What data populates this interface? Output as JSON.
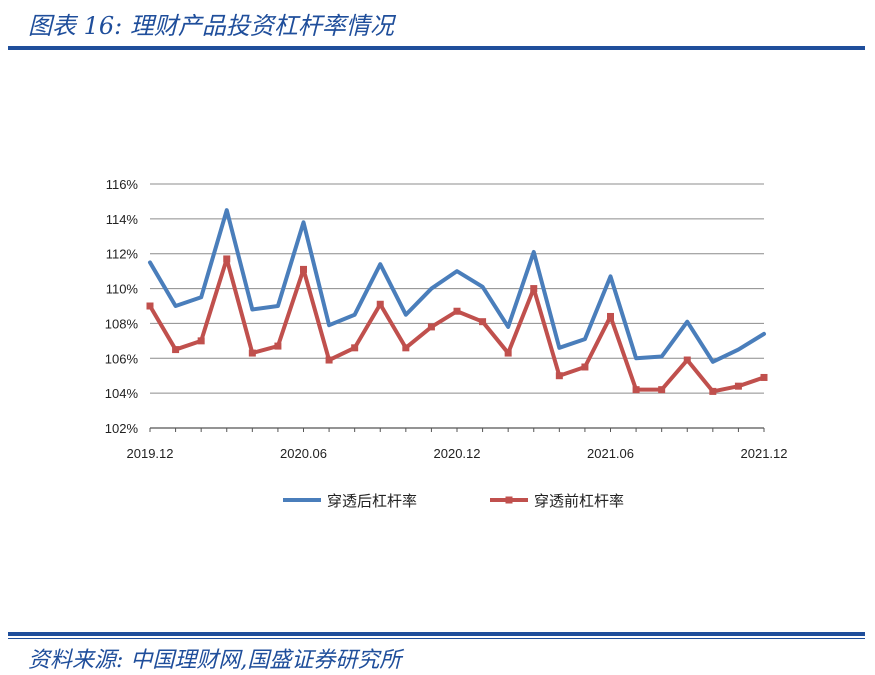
{
  "header": {
    "title": "图表 16:  理财产品投资杠杆率情况"
  },
  "footer": {
    "source": "资料来源:  中国理财网,国盛证券研究所"
  },
  "colors": {
    "accent": "#1f4e9b",
    "series_after": "#4a7ebb",
    "series_before": "#c0504d"
  },
  "chart_data": {
    "type": "line",
    "title": "",
    "xlabel": "",
    "ylabel": "",
    "x_tick_labels": [
      "2019.12",
      "2020.06",
      "2020.12",
      "2021.06",
      "2021.12"
    ],
    "x_tick_positions": [
      0,
      6,
      12,
      18,
      24
    ],
    "y_tick_labels": [
      "102%",
      "104%",
      "106%",
      "108%",
      "110%",
      "112%",
      "114%",
      "116%"
    ],
    "ylim": [
      102,
      116
    ],
    "y_unit": "%",
    "grid": true,
    "legend_position": "bottom",
    "series": [
      {
        "name": "穿透后杠杆率",
        "color": "#4a7ebb",
        "marker": "none",
        "values": [
          111.5,
          109.0,
          109.5,
          114.5,
          108.8,
          109.0,
          113.8,
          107.9,
          108.5,
          111.4,
          108.5,
          110.0,
          111.0,
          110.1,
          107.8,
          112.1,
          106.6,
          107.1,
          110.7,
          106.0,
          106.1,
          108.1,
          105.8,
          106.5,
          107.4
        ]
      },
      {
        "name": "穿透前杠杆率",
        "color": "#c0504d",
        "marker": "square",
        "values": [
          109.0,
          106.5,
          107.0,
          111.7,
          106.3,
          106.7,
          111.1,
          105.9,
          106.6,
          109.1,
          106.6,
          107.8,
          108.7,
          108.1,
          106.3,
          110.0,
          105.0,
          105.5,
          108.4,
          104.2,
          104.2,
          105.9,
          104.1,
          104.4,
          104.9
        ]
      }
    ]
  }
}
